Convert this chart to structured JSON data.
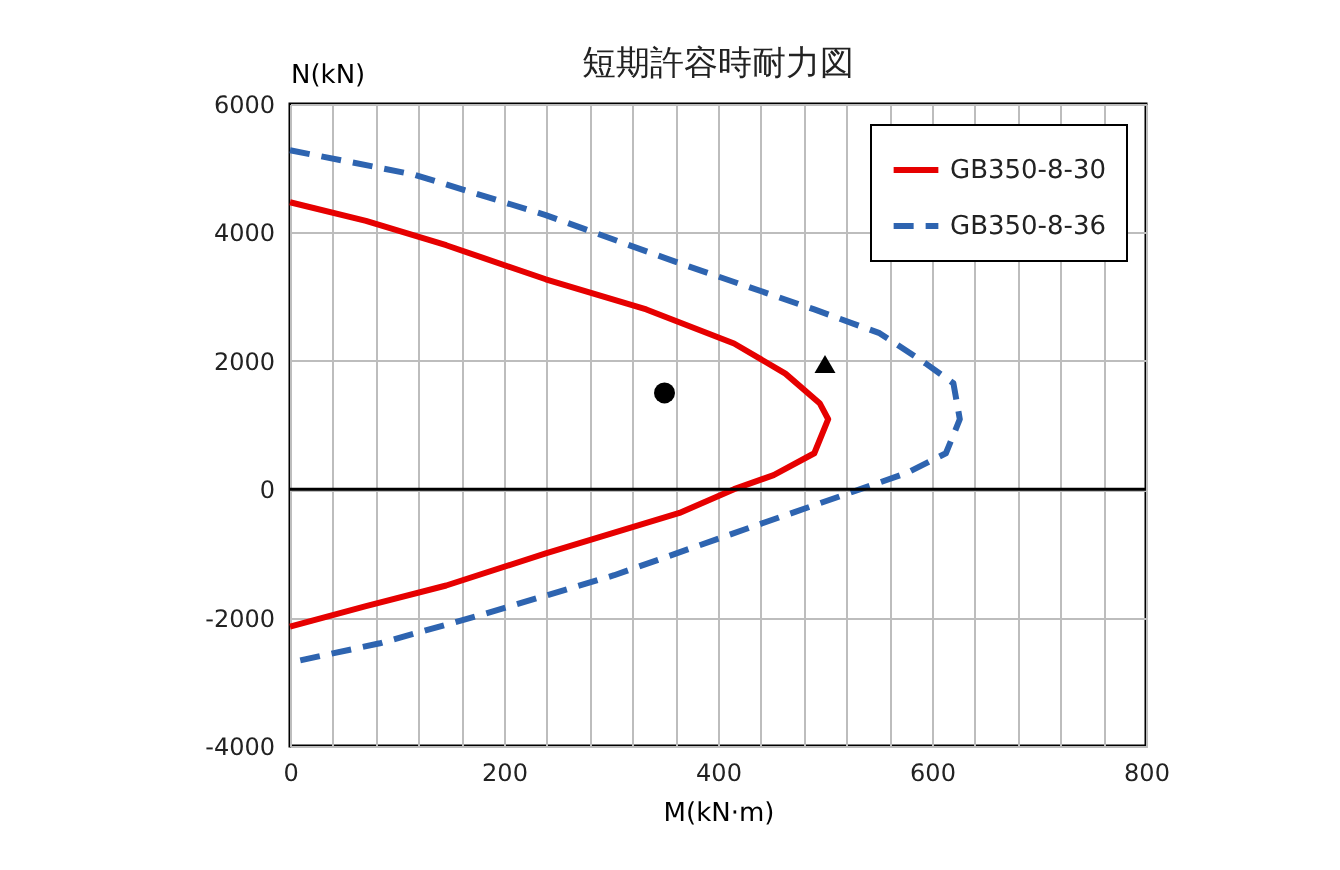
{
  "chart_data": {
    "type": "line",
    "title": "短期許容時耐力図",
    "xlabel": "M(kN·m)",
    "ylabel": "N(kN)",
    "xlim": [
      0,
      800
    ],
    "xticks": [
      0,
      {
        "value": 40,
        "label": null
      },
      {
        "value": 80,
        "label": null
      },
      {
        "value": 120,
        "label": null
      },
      {
        "value": 160,
        "label": null
      },
      200,
      {
        "value": 240,
        "label": null
      },
      {
        "value": 280,
        "label": null
      },
      {
        "value": 320,
        "label": null
      },
      {
        "value": 360,
        "label": null
      },
      400,
      {
        "value": 440,
        "label": null
      },
      {
        "value": 480,
        "label": null
      },
      {
        "value": 520,
        "label": null
      },
      {
        "value": 560,
        "label": null
      },
      600,
      {
        "value": 640,
        "label": null
      },
      {
        "value": 680,
        "label": null
      },
      {
        "value": 720,
        "label": null
      },
      {
        "value": 760,
        "label": null
      },
      800
    ],
    "ylim": [
      -4000,
      6000
    ],
    "yticks": [
      -4000,
      -2000,
      0,
      2000,
      4000,
      6000
    ],
    "grid": true,
    "legend": "top right",
    "ref_lines": [
      {
        "axis": "y",
        "value": 0,
        "color": "#000000"
      }
    ],
    "series": [
      {
        "name": "GB350-8-30",
        "type": "line",
        "color": "#e60000",
        "line_style": "solid",
        "x": [
          0,
          71,
          146,
          239,
          333,
          415,
          463,
          495,
          503,
          490,
          452,
          415,
          364,
          239,
          146,
          71,
          0
        ],
        "values": [
          4470,
          4180,
          3800,
          3270,
          2800,
          2270,
          1800,
          1340,
          1090,
          560,
          220,
          0,
          -370,
          -1000,
          -1500,
          -1820,
          -2140
        ]
      },
      {
        "name": "GB350-8-36",
        "type": "line",
        "color": "#2e64b0",
        "line_style": "dashed",
        "x": [
          0,
          116,
          239,
          364,
          490,
          551,
          594,
          620,
          626,
          613,
          576,
          533,
          426,
          303,
          178,
          84,
          0
        ],
        "values": [
          5280,
          4900,
          4270,
          3520,
          2800,
          2430,
          1960,
          1650,
          1090,
          560,
          250,
          0,
          -620,
          -1340,
          -1960,
          -2400,
          -2700
        ]
      },
      {
        "type": "scatter",
        "color": "#000000",
        "marker": "circle",
        "x": [
          350
        ],
        "values": [
          1500
        ]
      },
      {
        "type": "scatter",
        "color": "#000000",
        "marker": "triangle",
        "x": [
          500
        ],
        "values": [
          1950
        ]
      }
    ]
  }
}
